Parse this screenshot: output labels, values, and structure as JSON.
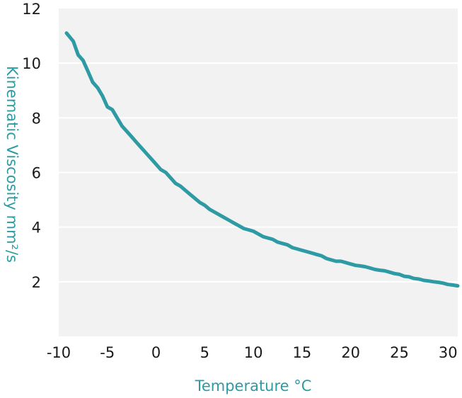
{
  "chart_data": {
    "type": "line",
    "title": "",
    "xlabel": "Temperature °C",
    "ylabel": "Kinematic Viscosity mm²/s",
    "xlim": [
      -10,
      31
    ],
    "ylim": [
      0,
      12
    ],
    "x_ticks": [
      "-10",
      "-5",
      "0",
      "5",
      "10",
      "15",
      "20",
      "25",
      "30"
    ],
    "y_ticks": [
      "2",
      "4",
      "6",
      "8",
      "10",
      "12"
    ],
    "grid": true,
    "legend": "none",
    "colors": {
      "line": "#2e9aa4",
      "plot_bg": "#f2f2f2",
      "grid": "#ffffff",
      "axis_title": "#2e9aa4"
    },
    "series": [
      {
        "x": [
          -9.2,
          -8.5,
          -8,
          -7.5,
          -7,
          -6.5,
          -6,
          -5.5,
          -5,
          -4.5,
          -4,
          -3.5,
          -3,
          -2.5,
          -2,
          -1.5,
          -1,
          -0.5,
          0,
          0.5,
          1,
          1.5,
          2,
          2.5,
          3,
          3.5,
          4,
          4.5,
          5,
          5.5,
          6,
          6.5,
          7,
          7.5,
          8,
          8.5,
          9,
          9.5,
          10,
          10.5,
          11,
          11.5,
          12,
          12.5,
          13,
          13.5,
          14,
          14.5,
          15,
          15.5,
          16,
          16.5,
          17,
          17.5,
          18,
          18.5,
          19,
          19.5,
          20,
          20.5,
          21,
          21.5,
          22,
          22.5,
          23,
          23.5,
          24,
          24.5,
          25,
          25.5,
          26,
          26.5,
          27,
          27.5,
          28,
          28.5,
          29,
          29.5,
          30,
          30.5,
          31
        ],
        "y": [
          11.1,
          10.8,
          10.3,
          10.1,
          9.7,
          9.3,
          9.1,
          8.8,
          8.4,
          8.3,
          8.0,
          7.7,
          7.5,
          7.3,
          7.1,
          6.9,
          6.7,
          6.5,
          6.3,
          6.1,
          6.0,
          5.8,
          5.6,
          5.5,
          5.35,
          5.2,
          5.05,
          4.9,
          4.8,
          4.65,
          4.55,
          4.45,
          4.35,
          4.25,
          4.15,
          4.05,
          3.95,
          3.9,
          3.85,
          3.75,
          3.65,
          3.6,
          3.55,
          3.45,
          3.4,
          3.35,
          3.25,
          3.2,
          3.15,
          3.1,
          3.05,
          3.0,
          2.95,
          2.85,
          2.8,
          2.75,
          2.75,
          2.7,
          2.65,
          2.6,
          2.58,
          2.55,
          2.5,
          2.45,
          2.42,
          2.4,
          2.35,
          2.3,
          2.27,
          2.2,
          2.18,
          2.12,
          2.1,
          2.05,
          2.03,
          2.0,
          1.98,
          1.95,
          1.9,
          1.88,
          1.85
        ]
      }
    ]
  }
}
